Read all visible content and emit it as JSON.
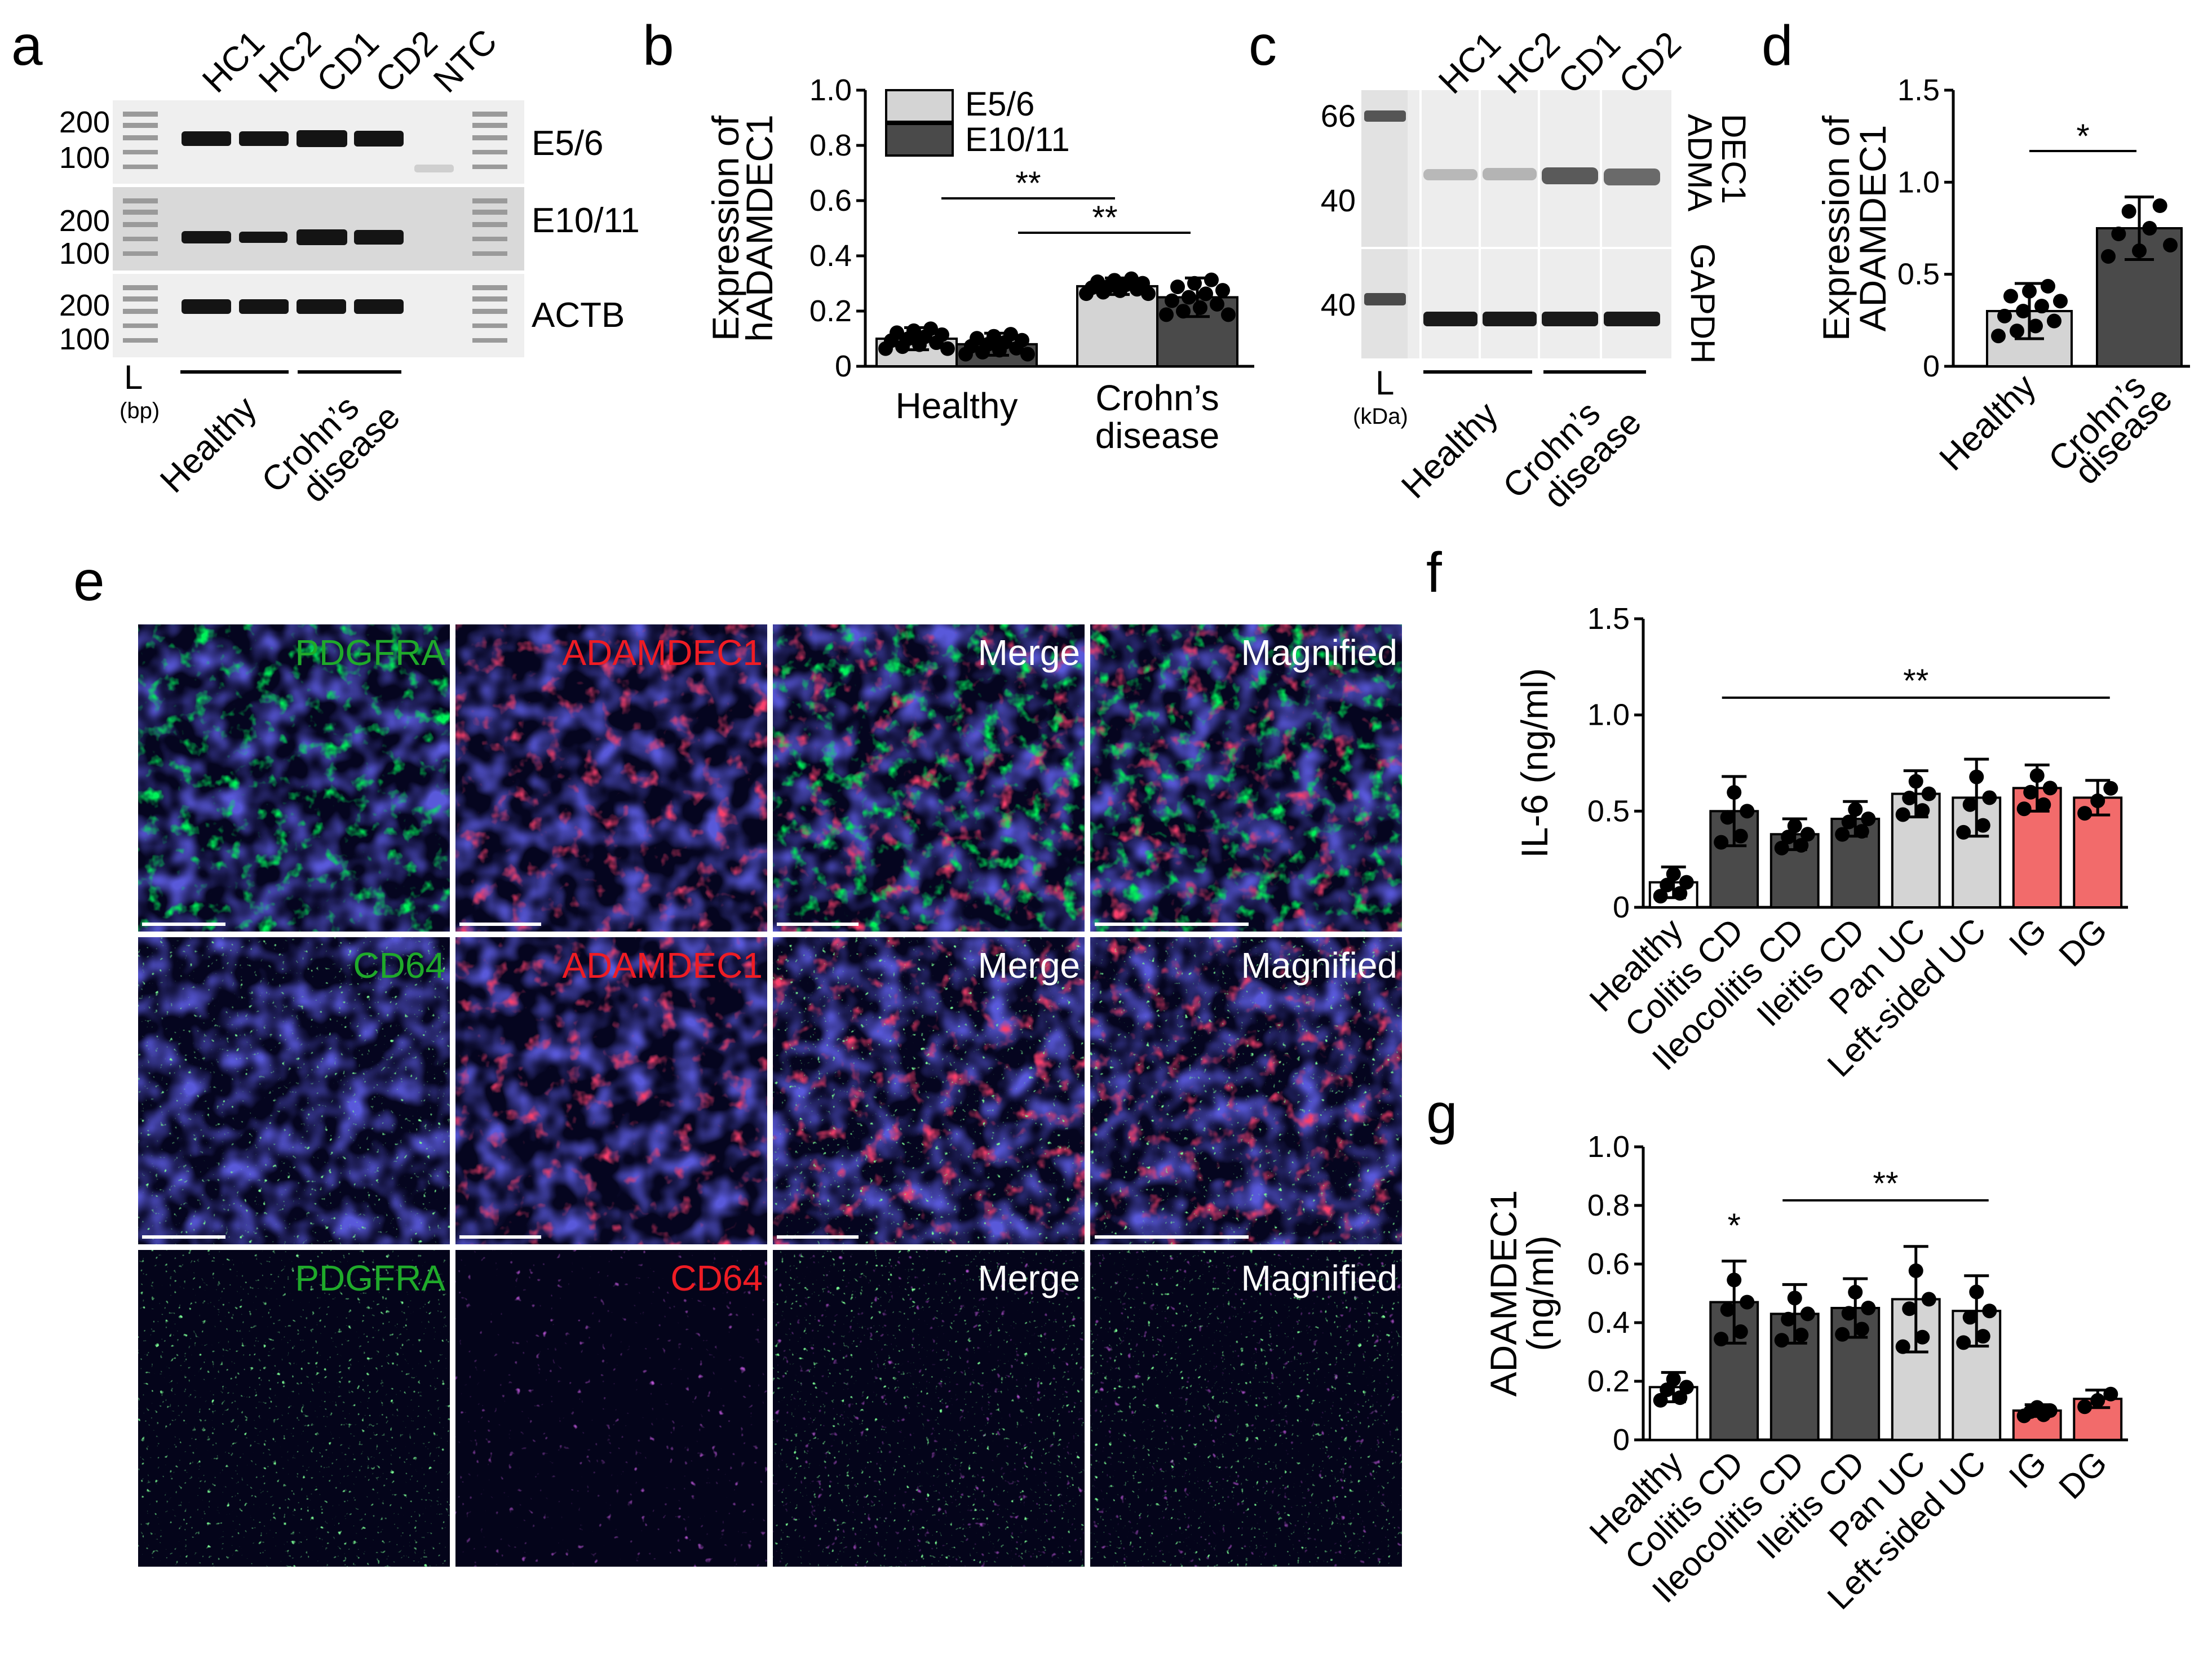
{
  "panel_letters": {
    "a": "a",
    "b": "b",
    "c": "c",
    "d": "d",
    "e": "e",
    "f": "f",
    "g": "g"
  },
  "gel_a": {
    "lanes": [
      "HC1",
      "HC2",
      "CD1",
      "CD2",
      "NTC"
    ],
    "row_labels": [
      "E5/6",
      "E10/11",
      "ACTB"
    ],
    "size_upper": "200",
    "size_lower": "100",
    "ladder": "L",
    "unit": "(bp)",
    "groups": [
      "Healthy",
      "Crohn’s",
      "disease"
    ]
  },
  "blot_c": {
    "lanes": [
      "HC1",
      "HC2",
      "CD1",
      "CD2"
    ],
    "mw_66": "66",
    "mw_40a": "40",
    "mw_40b": "40",
    "row_labels": [
      "ADMA",
      "DEC1",
      "GAPDH"
    ],
    "ladder": "L",
    "unit": "(kDa)",
    "groups": [
      "Healthy",
      "Crohn’s",
      "disease"
    ]
  },
  "micro_e": {
    "rows": [
      {
        "titles": [
          "PDGFRA",
          "ADAMDEC1",
          "Merge",
          "Magnified"
        ]
      },
      {
        "titles": [
          "CD64",
          "ADAMDEC1",
          "Merge",
          "Magnified"
        ]
      },
      {
        "titles": [
          "PDGFRA",
          "CD64",
          "Merge",
          "Magnified"
        ]
      }
    ]
  },
  "colors": {
    "light": "#d4d4d4",
    "dark": "#4a4a4a",
    "red": "#f26b6b",
    "white": "#ffffff",
    "green": "#1faa2a",
    "redlabel": "#ee1c24"
  },
  "chart_data": [
    {
      "id": "b",
      "type": "bar",
      "ylabel_lines": [
        "Expression of",
        "hADAMDEC1"
      ],
      "ylim": [
        0,
        1.0
      ],
      "yticks": [
        "0",
        "0.2",
        "0.4",
        "0.6",
        "0.8",
        "1.0"
      ],
      "groups": [
        [
          "Healthy"
        ],
        [
          "Crohn’s",
          "disease"
        ]
      ],
      "series": [
        {
          "name": "E5/6",
          "values": [
            0.1,
            0.29
          ],
          "errors": [
            0.04,
            0.03
          ]
        },
        {
          "name": "E10/11",
          "values": [
            0.08,
            0.25
          ],
          "errors": [
            0.04,
            0.07
          ]
        }
      ],
      "significance": [
        "**",
        "**"
      ]
    },
    {
      "id": "d",
      "type": "bar",
      "ylabel_lines": [
        "Expression of",
        "ADAMDEC1"
      ],
      "ylim": [
        0,
        1.5
      ],
      "yticks": [
        "0",
        "0.5",
        "1.0",
        "1.5"
      ],
      "categories": [
        "Healthy",
        "Crohn’s disease"
      ],
      "values": [
        0.3,
        0.75
      ],
      "errors": [
        0.15,
        0.17
      ],
      "significance": [
        "*"
      ]
    },
    {
      "id": "f",
      "type": "bar",
      "ylabel": "IL-6 (ng/ml)",
      "ylim": [
        0,
        1.5
      ],
      "yticks": [
        "0",
        "0.5",
        "1.0",
        "1.5"
      ],
      "categories": [
        "Healthy",
        "Colitis CD",
        "Ileocolitis CD",
        "Ileitis CD",
        "Pan UC",
        "Left-sided UC",
        "IG",
        "DG"
      ],
      "values": [
        0.13,
        0.5,
        0.38,
        0.46,
        0.59,
        0.57,
        0.62,
        0.57
      ],
      "errors": [
        0.08,
        0.18,
        0.08,
        0.09,
        0.12,
        0.2,
        0.12,
        0.09
      ],
      "colors": [
        "white",
        "dark",
        "dark",
        "dark",
        "light",
        "light",
        "red",
        "red"
      ],
      "significance": [
        "**"
      ]
    },
    {
      "id": "g",
      "type": "bar",
      "ylabel_lines": [
        "ADAMDEC1",
        "(ng/ml)"
      ],
      "ylim": [
        0,
        1.0
      ],
      "yticks": [
        "0",
        "0.2",
        "0.4",
        "0.6",
        "0.8",
        "1.0"
      ],
      "categories": [
        "Healthy",
        "Colitis CD",
        "Ileocolitis CD",
        "Ileitis CD",
        "Pan UC",
        "Left-sided UC",
        "IG",
        "DG"
      ],
      "values": [
        0.18,
        0.47,
        0.43,
        0.45,
        0.48,
        0.44,
        0.1,
        0.14
      ],
      "errors": [
        0.05,
        0.14,
        0.1,
        0.1,
        0.18,
        0.12,
        0.02,
        0.03
      ],
      "colors": [
        "white",
        "dark",
        "dark",
        "dark",
        "light",
        "light",
        "red",
        "red"
      ],
      "significance": [
        "*",
        "**"
      ]
    }
  ]
}
